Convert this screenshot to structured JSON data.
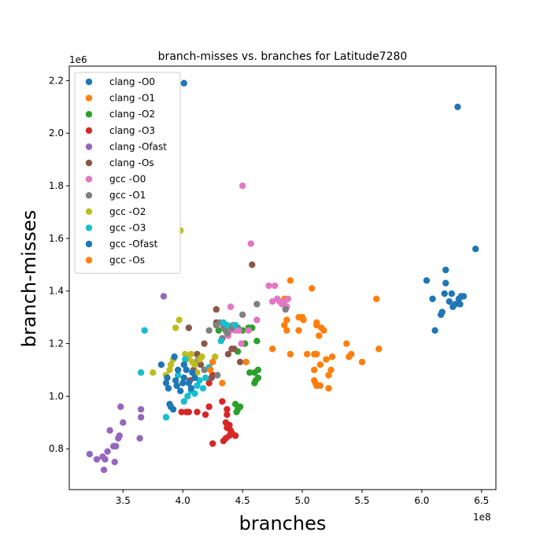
{
  "chart_data": {
    "type": "scatter",
    "title": "branch-misses vs. branches for Latitude7280",
    "xlabel": "branches",
    "ylabel": "branch-misses",
    "x_offset_label": "1e8",
    "y_offset_label": "1e6",
    "xlim": [
      3.05,
      6.62
    ],
    "ylim": [
      0.645,
      2.255
    ],
    "xticks": [
      3.5,
      4.0,
      4.5,
      5.0,
      5.5,
      6.0,
      6.5
    ],
    "yticks": [
      0.8,
      1.0,
      1.2,
      1.4,
      1.6,
      1.8,
      2.0,
      2.2
    ],
    "xtick_labels": [
      "3.5",
      "4.0",
      "4.5",
      "5.0",
      "5.5",
      "6.0",
      "6.5"
    ],
    "ytick_labels": [
      "0.8",
      "1.0",
      "1.2",
      "1.4",
      "1.6",
      "1.8",
      "2.0",
      "2.2"
    ],
    "legend_position": "upper-left",
    "series": [
      {
        "name": "clang -O0",
        "color": "#1f77b4",
        "points": [
          [
            6.04,
            1.44
          ],
          [
            6.09,
            1.37
          ],
          [
            6.11,
            1.25
          ],
          [
            6.16,
            1.31
          ],
          [
            6.17,
            1.32
          ],
          [
            6.2,
            1.48
          ],
          [
            6.2,
            1.43
          ],
          [
            6.19,
            1.39
          ],
          [
            6.23,
            1.36
          ],
          [
            6.25,
            1.39
          ],
          [
            6.26,
            1.34
          ],
          [
            6.28,
            1.35
          ],
          [
            6.31,
            1.37
          ],
          [
            6.32,
            1.35
          ],
          [
            6.33,
            1.38
          ],
          [
            6.35,
            1.38
          ],
          [
            6.45,
            1.56
          ],
          [
            6.3,
            2.1
          ],
          [
            4.01,
            2.19
          ]
        ]
      },
      {
        "name": "clang -O1",
        "color": "#ff7f0e",
        "points": [
          [
            4.85,
            1.27
          ],
          [
            4.87,
            1.29
          ],
          [
            4.9,
            1.44
          ],
          [
            4.97,
            1.3
          ],
          [
            5.0,
            1.3
          ],
          [
            5.01,
            1.29
          ],
          [
            5.08,
            1.41
          ],
          [
            5.1,
            1.16
          ],
          [
            5.12,
            1.28
          ],
          [
            5.12,
            1.27
          ],
          [
            5.14,
            1.23
          ],
          [
            5.16,
            1.26
          ],
          [
            5.18,
            1.25
          ],
          [
            5.1,
            1.1
          ],
          [
            5.15,
            1.12
          ],
          [
            5.2,
            1.14
          ],
          [
            5.22,
            1.08
          ],
          [
            5.24,
            1.1
          ],
          [
            5.1,
            1.06
          ],
          [
            5.11,
            1.05
          ],
          [
            5.12,
            1.04
          ],
          [
            5.15,
            1.04
          ],
          [
            5.22,
            1.03
          ],
          [
            5.12,
            1.16
          ],
          [
            5.25,
            1.15
          ],
          [
            5.37,
            1.2
          ],
          [
            5.39,
            1.15
          ],
          [
            5.41,
            1.16
          ],
          [
            5.5,
            1.13
          ],
          [
            5.62,
            1.37
          ],
          [
            5.64,
            1.18
          ],
          [
            4.75,
            1.18
          ],
          [
            4.85,
            1.37
          ]
        ]
      },
      {
        "name": "clang -O2",
        "color": "#2ca02c",
        "points": [
          [
            4.3,
            1.25
          ],
          [
            4.36,
            1.25
          ],
          [
            4.42,
            1.27
          ],
          [
            4.46,
            1.26
          ],
          [
            4.5,
            1.25
          ],
          [
            4.55,
            1.26
          ],
          [
            4.58,
            1.26
          ],
          [
            4.62,
            1.21
          ],
          [
            4.46,
            1.17
          ],
          [
            4.56,
            1.09
          ],
          [
            4.6,
            1.09
          ],
          [
            4.63,
            1.1
          ],
          [
            4.61,
            1.06
          ],
          [
            4.63,
            1.07
          ],
          [
            4.6,
            1.05
          ],
          [
            4.44,
            0.97
          ],
          [
            4.46,
            0.95
          ],
          [
            4.45,
            0.94
          ],
          [
            4.48,
            0.96
          ],
          [
            4.52,
            1.2
          ]
        ]
      },
      {
        "name": "clang -O3",
        "color": "#d62728",
        "points": [
          [
            3.99,
            0.94
          ],
          [
            4.03,
            0.94
          ],
          [
            4.05,
            0.94
          ],
          [
            4.12,
            0.94
          ],
          [
            4.19,
            0.93
          ],
          [
            4.22,
            0.96
          ],
          [
            4.33,
            0.98
          ],
          [
            4.37,
            0.95
          ],
          [
            4.37,
            0.93
          ],
          [
            4.36,
            0.9
          ],
          [
            4.39,
            0.89
          ],
          [
            4.37,
            0.88
          ],
          [
            4.4,
            0.87
          ],
          [
            4.41,
            0.86
          ],
          [
            4.39,
            0.85
          ],
          [
            4.44,
            0.85
          ],
          [
            4.36,
            0.84
          ],
          [
            4.34,
            0.83
          ],
          [
            4.25,
            0.82
          ],
          [
            4.22,
            1.05
          ],
          [
            4.25,
            1.08
          ]
        ]
      },
      {
        "name": "clang -Ofast",
        "color": "#9467bd",
        "points": [
          [
            3.22,
            0.78
          ],
          [
            3.28,
            0.76
          ],
          [
            3.33,
            0.77
          ],
          [
            3.35,
            0.76
          ],
          [
            3.34,
            0.72
          ],
          [
            3.37,
            0.79
          ],
          [
            3.39,
            0.87
          ],
          [
            3.42,
            0.81
          ],
          [
            3.43,
            0.75
          ],
          [
            3.44,
            0.81
          ],
          [
            3.46,
            0.84
          ],
          [
            3.47,
            0.85
          ],
          [
            3.48,
            0.96
          ],
          [
            3.5,
            0.9
          ],
          [
            3.64,
            0.84
          ],
          [
            3.65,
            0.92
          ],
          [
            3.65,
            0.95
          ],
          [
            3.84,
            1.38
          ]
        ]
      },
      {
        "name": "clang -Os",
        "color": "#8c564b",
        "points": [
          [
            4.06,
            1.06
          ],
          [
            4.09,
            1.1
          ],
          [
            4.12,
            1.16
          ],
          [
            4.15,
            1.12
          ],
          [
            4.18,
            1.2
          ],
          [
            4.24,
            1.07
          ],
          [
            4.28,
            1.28
          ],
          [
            4.28,
            1.33
          ],
          [
            4.35,
            1.27
          ],
          [
            4.38,
            1.16
          ],
          [
            4.41,
            1.18
          ],
          [
            4.43,
            1.18
          ],
          [
            4.48,
            1.13
          ],
          [
            4.58,
            1.5
          ],
          [
            4.05,
            1.26
          ]
        ]
      },
      {
        "name": "gcc -O0",
        "color": "#e377c2",
        "points": [
          [
            4.38,
            1.23
          ],
          [
            4.4,
            1.25
          ],
          [
            4.4,
            1.34
          ],
          [
            4.43,
            1.27
          ],
          [
            4.44,
            1.25
          ],
          [
            4.47,
            1.25
          ],
          [
            4.49,
            1.2
          ],
          [
            4.5,
            1.8
          ],
          [
            4.55,
            1.25
          ],
          [
            4.57,
            1.58
          ],
          [
            4.62,
            1.29
          ],
          [
            4.72,
            1.42
          ],
          [
            4.75,
            1.36
          ],
          [
            4.77,
            1.42
          ],
          [
            4.79,
            1.37
          ],
          [
            4.81,
            1.36
          ],
          [
            4.83,
            1.35
          ],
          [
            4.85,
            1.36
          ],
          [
            4.88,
            1.37
          ],
          [
            4.87,
            1.34
          ]
        ]
      },
      {
        "name": "gcc -O1",
        "color": "#7f7f7f",
        "points": [
          [
            4.1,
            1.12
          ],
          [
            4.13,
            1.14
          ],
          [
            4.18,
            1.1
          ],
          [
            4.22,
            1.25
          ],
          [
            4.28,
            1.27
          ],
          [
            4.31,
            1.28
          ],
          [
            4.34,
            1.26
          ],
          [
            4.37,
            1.24
          ],
          [
            4.41,
            1.26
          ],
          [
            4.5,
            1.31
          ],
          [
            4.62,
            1.35
          ],
          [
            4.86,
            1.33
          ],
          [
            4.29,
            1.08
          ],
          [
            4.33,
            1.22
          ]
        ]
      },
      {
        "name": "gcc -O2",
        "color": "#bcbd22",
        "points": [
          [
            3.75,
            1.09
          ],
          [
            3.86,
            1.08
          ],
          [
            3.89,
            1.1
          ],
          [
            3.9,
            1.12
          ],
          [
            3.92,
            1.14
          ],
          [
            3.94,
            1.26
          ],
          [
            3.97,
            1.29
          ],
          [
            4.02,
            1.16
          ],
          [
            4.03,
            1.14
          ],
          [
            4.05,
            1.15
          ],
          [
            4.07,
            1.16
          ],
          [
            4.08,
            1.13
          ],
          [
            4.1,
            1.12
          ],
          [
            4.12,
            1.09
          ],
          [
            4.14,
            1.14
          ],
          [
            4.16,
            1.15
          ],
          [
            4.27,
            1.15
          ],
          [
            3.98,
            1.63
          ]
        ]
      },
      {
        "name": "gcc -O3",
        "color": "#17becf",
        "points": [
          [
            3.68,
            1.25
          ],
          [
            3.65,
            1.09
          ],
          [
            3.86,
            0.92
          ],
          [
            3.96,
            1.08
          ],
          [
            4.01,
            0.98
          ],
          [
            4.04,
            1.0
          ],
          [
            4.07,
            1.02
          ],
          [
            4.1,
            1.01
          ],
          [
            4.12,
            1.04
          ],
          [
            4.14,
            1.06
          ],
          [
            4.17,
            1.03
          ],
          [
            4.19,
            1.07
          ],
          [
            4.22,
            1.11
          ],
          [
            4.25,
            1.13
          ],
          [
            4.32,
            1.21
          ],
          [
            4.34,
            1.28
          ],
          [
            4.37,
            1.27
          ],
          [
            4.44,
            1.27
          ],
          [
            4.02,
            1.14
          ]
        ]
      },
      {
        "name": "gcc -Ofast",
        "color": "#1f77b4",
        "points": [
          [
            3.82,
            1.12
          ],
          [
            3.86,
            1.05
          ],
          [
            3.87,
            1.07
          ],
          [
            3.88,
            1.03
          ],
          [
            3.89,
            0.97
          ],
          [
            3.9,
            0.96
          ],
          [
            3.92,
            0.95
          ],
          [
            3.94,
            1.06
          ],
          [
            3.95,
            1.04
          ],
          [
            3.96,
            1.1
          ],
          [
            3.98,
            1.02
          ],
          [
            4.0,
            1.05
          ],
          [
            4.01,
            1.07
          ],
          [
            4.03,
            1.1
          ],
          [
            4.05,
            1.05
          ],
          [
            4.07,
            1.03
          ],
          [
            4.08,
            1.09
          ],
          [
            4.1,
            1.07
          ],
          [
            3.93,
            1.15
          ],
          [
            4.01,
            1.12
          ]
        ]
      },
      {
        "name": "gcc -Os",
        "color": "#ff7f0e",
        "points": [
          [
            4.33,
            1.05
          ],
          [
            4.53,
            1.13
          ],
          [
            4.25,
            1.13
          ],
          [
            4.23,
            1.1
          ],
          [
            4.9,
            1.16
          ],
          [
            4.87,
            1.25
          ],
          [
            4.97,
            1.25
          ],
          [
            5.04,
            1.16
          ]
        ]
      }
    ]
  }
}
